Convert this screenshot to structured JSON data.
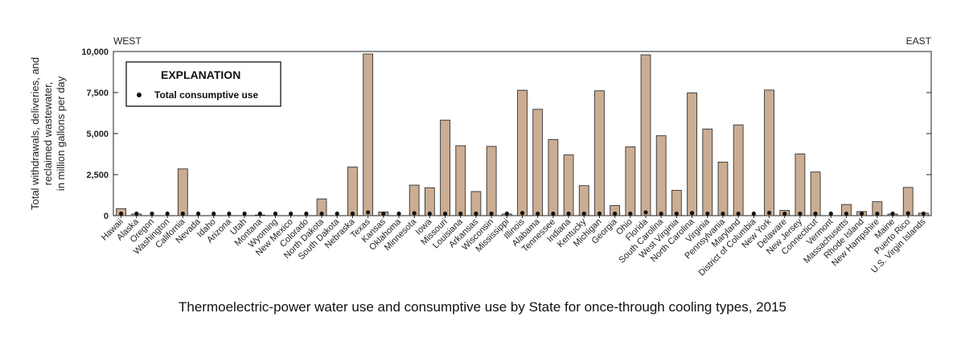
{
  "chart_data": {
    "type": "bar",
    "title": "Thermoelectric-power water use and consumptive use by State for once-through cooling types, 2015",
    "ylabel": [
      "Total withdrawals, deliveries, and",
      "reclaimed wastewater,",
      "in million gallons per day"
    ],
    "xlabel": "",
    "left_annotation": "WEST",
    "right_annotation": "EAST",
    "ylim": [
      0,
      10000
    ],
    "yticks": [
      0,
      2500,
      5000,
      7500,
      10000
    ],
    "ytick_labels": [
      "0",
      "2,500",
      "5,000",
      "7,500",
      "10,000"
    ],
    "grid": false,
    "legend": {
      "position": "top-left",
      "title": "EXPLANATION",
      "items": [
        "Total consumptive use"
      ]
    },
    "categories": [
      "Hawaii",
      "Alaska",
      "Oregon",
      "Washington",
      "California",
      "Nevada",
      "Idaho",
      "Arizona",
      "Utah",
      "Montana",
      "Wyoming",
      "New Mexico",
      "Colorado",
      "North Dakota",
      "South Dakota",
      "Nebraska",
      "Texas",
      "Kansas",
      "Oklahoma",
      "Minnesota",
      "Iowa",
      "Missouri",
      "Louisiana",
      "Arkansas",
      "Wisconsin",
      "Mississippi",
      "Illinois",
      "Alabama",
      "Tennessee",
      "Indiana",
      "Kentucky",
      "Michigan",
      "Georgia",
      "Ohio",
      "Florida",
      "South Carolina",
      "West Virginia",
      "North Carolina",
      "Virginia",
      "Pennsylvania",
      "Maryland",
      "District of Columbia",
      "New York",
      "Delaware",
      "New Jersey",
      "Connecticut",
      "Vermont",
      "Massachusetts",
      "Rhode Island",
      "New Hampshire",
      "Maine",
      "Puerto Rico",
      "U.S. Virgin Islands"
    ],
    "series": [
      {
        "name": "Total withdrawals, deliveries, and reclaimed wastewater",
        "values": [
          430,
          100,
          0,
          0,
          2850,
          0,
          0,
          0,
          0,
          40,
          0,
          0,
          0,
          1020,
          0,
          2960,
          9850,
          220,
          0,
          1860,
          1700,
          5820,
          4260,
          1470,
          4220,
          100,
          7640,
          6480,
          4640,
          3700,
          1830,
          7610,
          620,
          4190,
          9800,
          4870,
          1540,
          7480,
          5280,
          3260,
          5530,
          0,
          7650,
          320,
          3760,
          2660,
          0,
          680,
          250,
          850,
          100,
          1720,
          150
        ],
        "color": "#cbad93",
        "edge": "#333333"
      },
      {
        "name": "Total consumptive use",
        "values": [
          50,
          30,
          20,
          20,
          40,
          20,
          20,
          20,
          20,
          20,
          20,
          20,
          20,
          50,
          20,
          80,
          200,
          30,
          20,
          150,
          60,
          110,
          100,
          80,
          90,
          20,
          160,
          120,
          110,
          120,
          60,
          130,
          30,
          110,
          200,
          120,
          80,
          160,
          110,
          60,
          90,
          20,
          170,
          30,
          110,
          80,
          20,
          40,
          30,
          40,
          20,
          140,
          40
        ],
        "marker": "dot",
        "color": "#111111"
      }
    ]
  }
}
